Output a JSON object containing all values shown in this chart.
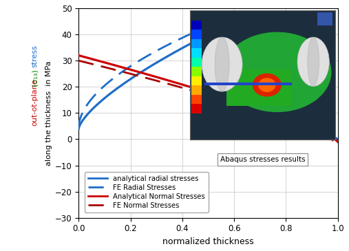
{
  "title": "",
  "xlabel": "normalized thickness",
  "ylabel_black": "along the thickness  in MPa",
  "ylabel_red": "out-ot-plane",
  "ylabel_green": "(σ₁₃)",
  "ylabel_blue": "stress",
  "xlim": [
    0,
    1
  ],
  "ylim": [
    -30,
    50
  ],
  "xticks": [
    0,
    0.2,
    0.4,
    0.6,
    0.8,
    1
  ],
  "yticks": [
    -30,
    -20,
    -10,
    0,
    10,
    20,
    30,
    40,
    50
  ],
  "blue_solid_label": "analytical radial stresses",
  "blue_dashed_label": "FE Radial Stresses",
  "red_solid_label": "Analytical Normal Stresses",
  "red_dashed_label": "FE Normal Stresses",
  "blue_color": "#1e6dc7",
  "red_solid_color": "#cc0000",
  "red_dashed_color": "#aa0000",
  "grid_color": "#bbbbbb",
  "background_color": "#ffffff",
  "inset_label": "Abaqus stresses results",
  "inset_bg": "#1a2a3a",
  "inset_green": "#2db82d",
  "inset_hotspot": "#cc2200",
  "inset_cyl": "#d8d8d8"
}
